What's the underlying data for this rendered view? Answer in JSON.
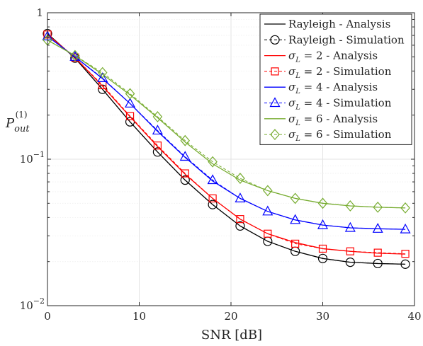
{
  "chart_data": {
    "type": "line",
    "xlabel": "SNR [dB]",
    "ylabel_main": "P",
    "ylabel_sub": "out",
    "ylabel_sup": "(1)",
    "yscale": "log",
    "xlim": [
      0,
      40
    ],
    "ylim": [
      0.01,
      1
    ],
    "x_ticks": [
      0,
      10,
      20,
      30,
      40
    ],
    "x_tick_labels": [
      "0",
      "10",
      "20",
      "30",
      "40"
    ],
    "y_ticks": [
      {
        "value": 1,
        "base": "1",
        "exp": ""
      },
      {
        "value": 0.1,
        "base": "10",
        "exp": "−1"
      },
      {
        "value": 0.01,
        "base": "10",
        "exp": "−2"
      }
    ],
    "grid": true,
    "legend_position": "top-right",
    "x": [
      0,
      3,
      6,
      9,
      12,
      15,
      18,
      21,
      24,
      27,
      30,
      33,
      36,
      39
    ],
    "series": [
      {
        "label_main": "Rayleigh - Analysis",
        "sigma_value": "",
        "color": "#000000",
        "dash": false,
        "marker": "none",
        "values": [
          0.72,
          0.49,
          0.3,
          0.18,
          0.112,
          0.072,
          0.049,
          0.035,
          0.0275,
          0.0235,
          0.021,
          0.0198,
          0.0194,
          0.0192
        ]
      },
      {
        "label_main": "Rayleigh - Simulation",
        "sigma_value": "",
        "color": "#000000",
        "dash": true,
        "marker": "circle",
        "values": [
          0.72,
          0.49,
          0.3,
          0.18,
          0.112,
          0.072,
          0.049,
          0.035,
          0.0275,
          0.0235,
          0.021,
          0.0198,
          0.0194,
          0.0192
        ]
      },
      {
        "label_main": "- Analysis",
        "sigma_value": "2",
        "color": "#ff0000",
        "dash": false,
        "marker": "none",
        "values": [
          0.71,
          0.495,
          0.315,
          0.195,
          0.122,
          0.079,
          0.054,
          0.039,
          0.031,
          0.027,
          0.0245,
          0.0235,
          0.0228,
          0.0225
        ]
      },
      {
        "label_main": "- Simulation",
        "sigma_value": "2",
        "color": "#ff0000",
        "dash": true,
        "marker": "square",
        "values": [
          0.71,
          0.495,
          0.32,
          0.197,
          0.124,
          0.08,
          0.054,
          0.039,
          0.031,
          0.0265,
          0.0245,
          0.0235,
          0.023,
          0.0226
        ]
      },
      {
        "label_main": "- Analysis",
        "sigma_value": "4",
        "color": "#0000ff",
        "dash": false,
        "marker": "none",
        "values": [
          0.69,
          0.5,
          0.355,
          0.24,
          0.155,
          0.103,
          0.071,
          0.054,
          0.044,
          0.0385,
          0.0355,
          0.034,
          0.0335,
          0.0332
        ]
      },
      {
        "label_main": "- Simulation",
        "sigma_value": "4",
        "color": "#0000ff",
        "dash": true,
        "marker": "triangle",
        "values": [
          0.69,
          0.5,
          0.358,
          0.24,
          0.157,
          0.104,
          0.072,
          0.054,
          0.044,
          0.0385,
          0.0355,
          0.034,
          0.0335,
          0.0332
        ]
      },
      {
        "label_main": "- Analysis",
        "sigma_value": "6",
        "color": "#77ac30",
        "dash": false,
        "marker": "none",
        "values": [
          0.65,
          0.51,
          0.38,
          0.275,
          0.192,
          0.131,
          0.093,
          0.072,
          0.061,
          0.054,
          0.05,
          0.048,
          0.047,
          0.0465
        ]
      },
      {
        "label_main": "- Simulation",
        "sigma_value": "6",
        "color": "#77ac30",
        "dash": true,
        "marker": "diamond",
        "values": [
          0.65,
          0.51,
          0.39,
          0.28,
          0.195,
          0.134,
          0.096,
          0.074,
          0.061,
          0.054,
          0.05,
          0.048,
          0.047,
          0.0465
        ]
      }
    ]
  }
}
